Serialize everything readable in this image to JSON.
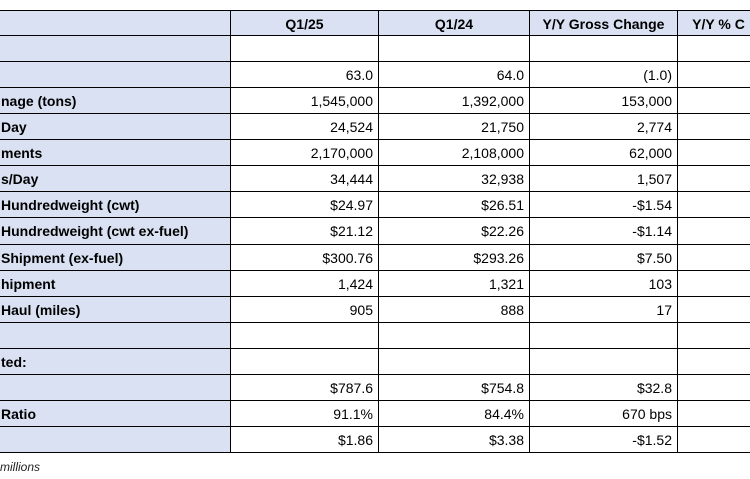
{
  "table": {
    "header": [
      "Q1/25",
      "Q1/24",
      "Y/Y Gross Change",
      "Y/Y % C"
    ],
    "rows": [
      {},
      {
        "cells": [
          "63.0",
          "64.0",
          "(1.0)"
        ]
      },
      {
        "label": "nage (tons)",
        "cells": [
          "1,545,000",
          "1,392,000",
          "153,000"
        ]
      },
      {
        "label": "Day",
        "cells": [
          "24,524",
          "21,750",
          "2,774"
        ]
      },
      {
        "label": "ments",
        "cells": [
          "2,170,000",
          "2,108,000",
          "62,000"
        ]
      },
      {
        "label": "s/Day",
        "cells": [
          "34,444",
          "32,938",
          "1,507"
        ]
      },
      {
        "label": "Hundredweight (cwt)",
        "cells": [
          "$24.97",
          "$26.51",
          "-$1.54"
        ]
      },
      {
        "label": "Hundredweight (cwt ex-fuel)",
        "cells": [
          "$21.12",
          "$22.26",
          "-$1.14"
        ]
      },
      {
        "label": "Shipment (ex-fuel)",
        "cells": [
          "$300.76",
          "$293.26",
          "$7.50"
        ]
      },
      {
        "label": "hipment",
        "cells": [
          "1,424",
          "1,321",
          "103"
        ]
      },
      {
        "label": "Haul (miles)",
        "cells": [
          "905",
          "888",
          "17"
        ]
      },
      {},
      {
        "label": "ted:"
      },
      {
        "cells": [
          "$787.6",
          "$754.8",
          "$32.8"
        ]
      },
      {
        "label": "Ratio",
        "cells": [
          "91.1%",
          "84.4%",
          "670 bps"
        ]
      },
      {
        "cells": [
          "$1.86",
          "$3.38",
          "-$1.52"
        ]
      }
    ]
  },
  "footnote": "millions"
}
